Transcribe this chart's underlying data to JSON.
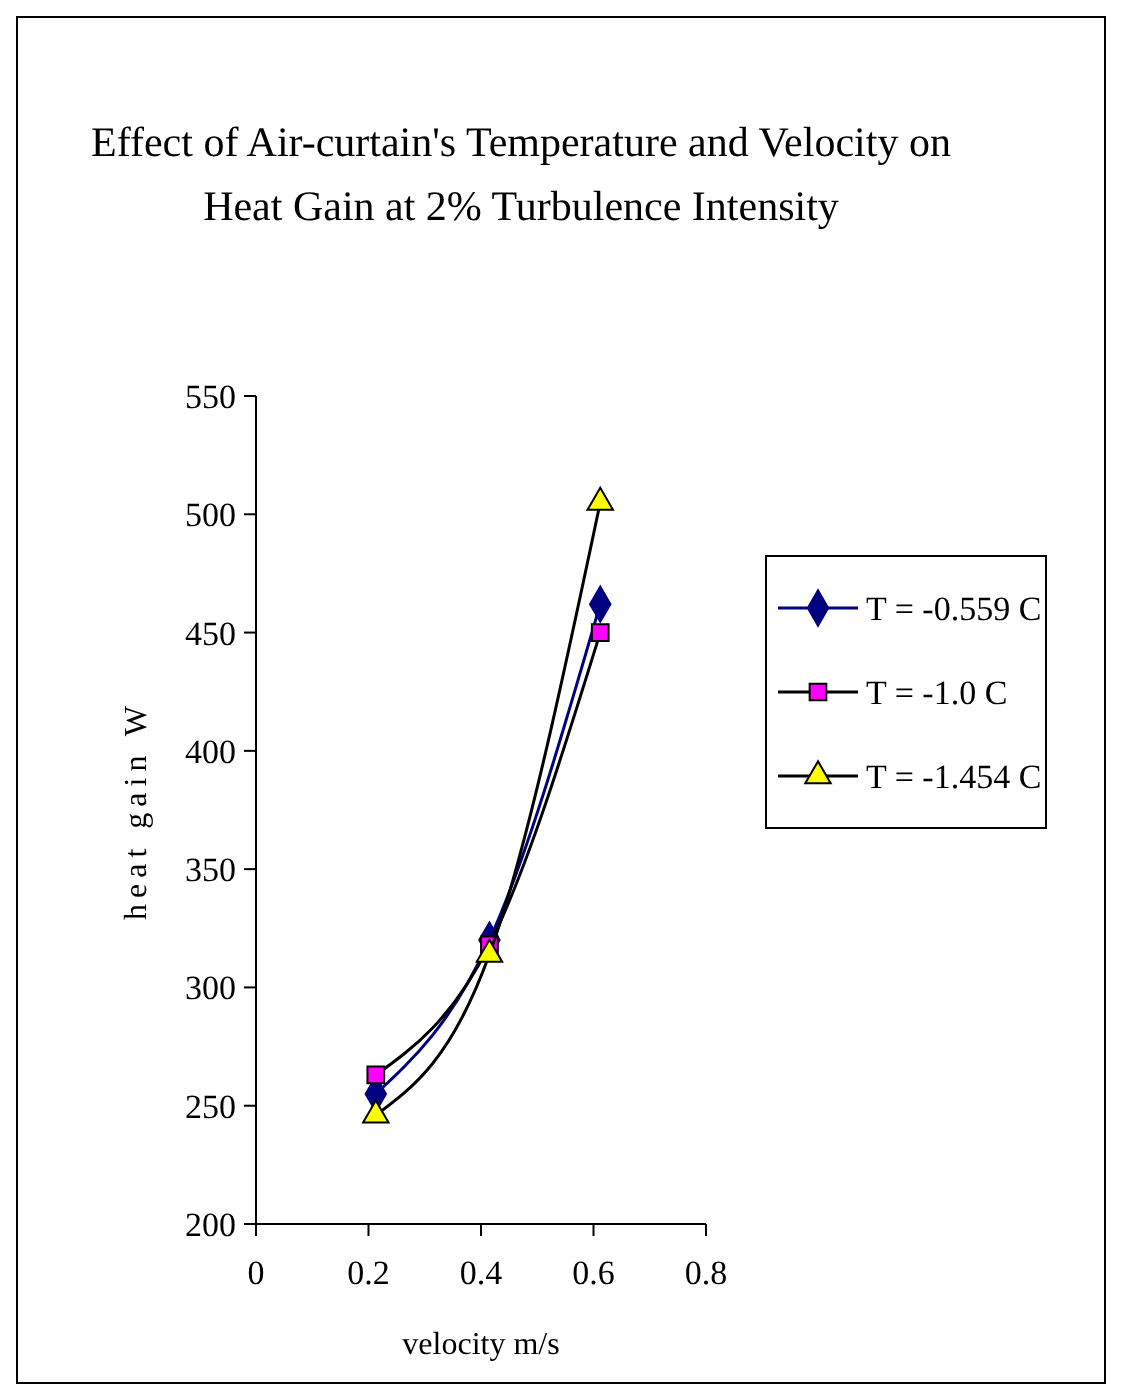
{
  "chart_data": {
    "type": "line",
    "title": "Effect of Air-curtain's Temperature and Velocity on Heat Gain at 2% Turbulence Intensity",
    "xlabel": "velocity m/s",
    "ylabel": "heat gain W",
    "xlim": [
      0,
      0.8
    ],
    "xticks": [
      0,
      0.2,
      0.4,
      0.6,
      0.8
    ],
    "ylim": [
      200,
      550
    ],
    "yticks": [
      200,
      250,
      300,
      350,
      400,
      450,
      500,
      550
    ],
    "grid": false,
    "legend": "right",
    "series": [
      {
        "name": "T = -0.559 C",
        "color": "#000080",
        "marker": "diamond",
        "x": [
          0.213,
          0.415,
          0.612
        ],
        "values": [
          255,
          320,
          462
        ]
      },
      {
        "name": "T = -1.0 C",
        "color": "#ff00ff",
        "marker": "square",
        "x": [
          0.213,
          0.415,
          0.612
        ],
        "values": [
          263,
          318,
          450
        ]
      },
      {
        "name": "T = -1.454 C",
        "color": "#ffff00",
        "marker": "triangle",
        "x": [
          0.213,
          0.415,
          0.612
        ],
        "values": [
          246,
          314,
          505
        ]
      }
    ]
  }
}
